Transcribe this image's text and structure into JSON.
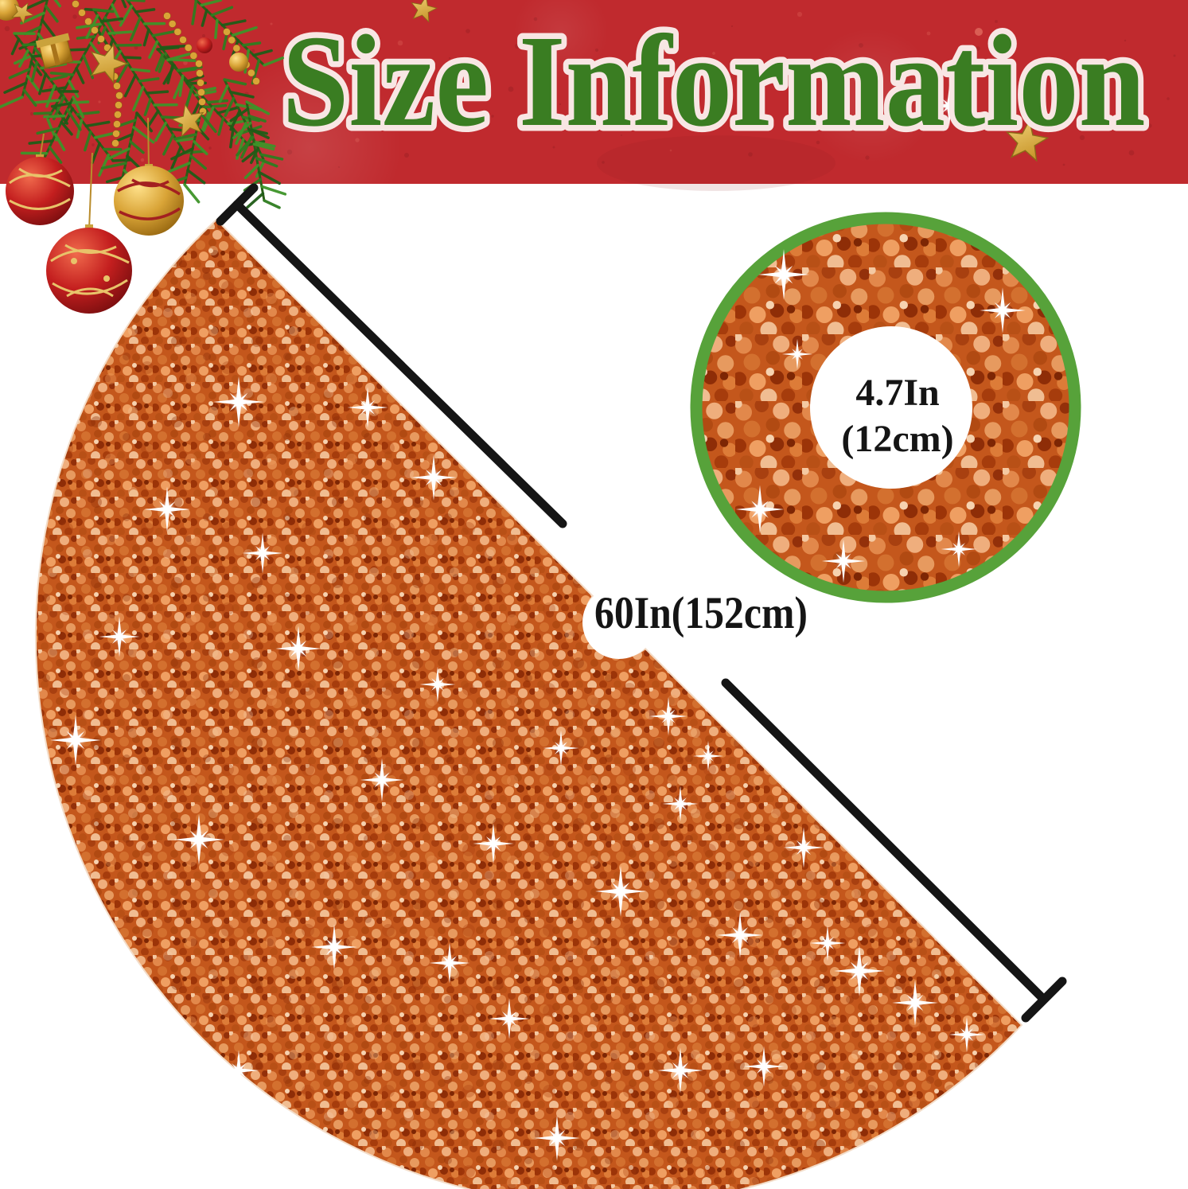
{
  "banner": {
    "title": "Size Information"
  },
  "skirt": {
    "diameter_label": "60In(152cm)"
  },
  "inset": {
    "hole_size_line1": "4.7In",
    "hole_size_line2": "(12cm)"
  },
  "colors": {
    "banner_red": "#c02a2e",
    "title_green": "#3a7d22",
    "title_outline": "#f8e6e4",
    "ring_green": "#57a23a",
    "skirt_orange": "#c4571c",
    "annotation_black": "#151515"
  }
}
